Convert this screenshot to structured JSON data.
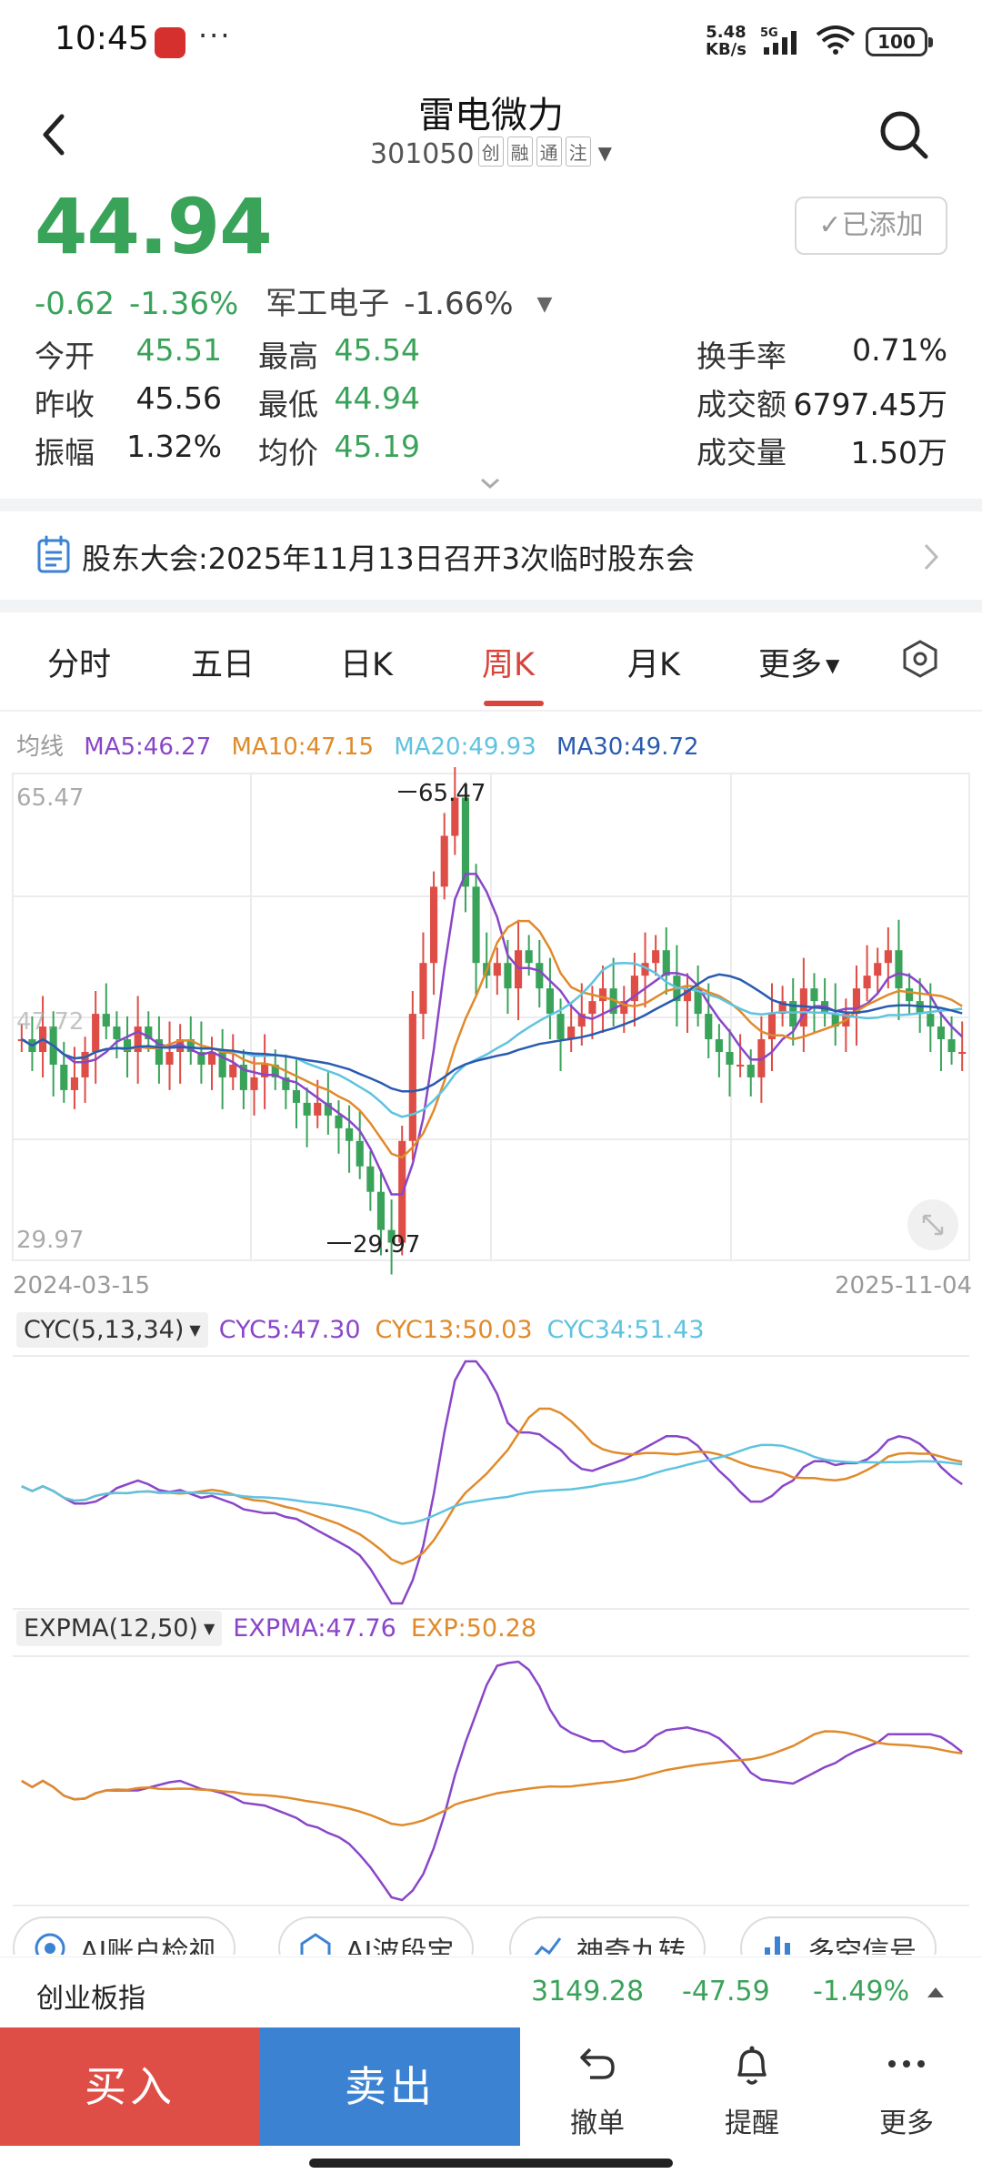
{
  "status_bar": {
    "time": "10:45",
    "more": "···",
    "speed_value": "5.48",
    "speed_unit": "KB/s",
    "network": "5G",
    "battery": "100",
    "icons": [
      "app-notification-icon",
      "signal-icon",
      "wifi-icon",
      "battery-icon"
    ]
  },
  "header": {
    "stock_name": "雷电微力",
    "stock_code": "301050",
    "tags": [
      "创",
      "融",
      "通",
      "注"
    ],
    "back_icon": "chevron-left-icon",
    "search_icon": "search-icon"
  },
  "quote": {
    "price": "44.94",
    "change": "-0.62",
    "change_pct": "-1.36%",
    "sector": "军工电子",
    "sector_pct": "-1.66%",
    "added_label": "已添加"
  },
  "stats": [
    [
      {
        "label": "今开",
        "value": "45.51",
        "color": "green"
      },
      {
        "label": "最高",
        "value": "45.54",
        "color": "green"
      },
      {
        "label": "换手率",
        "value": "0.71%",
        "color": "dark"
      }
    ],
    [
      {
        "label": "昨收",
        "value": "45.56",
        "color": "dark"
      },
      {
        "label": "最低",
        "value": "44.94",
        "color": "green"
      },
      {
        "label": "成交额",
        "value": "6797.45万",
        "color": "dark"
      }
    ],
    [
      {
        "label": "振幅",
        "value": "1.32%",
        "color": "dark"
      },
      {
        "label": "均价",
        "value": "45.19",
        "color": "green"
      },
      {
        "label": "成交量",
        "value": "1.50万",
        "color": "dark"
      }
    ]
  ],
  "notice": {
    "text": "股东大会:2025年11月13日召开3次临时股东会"
  },
  "tabs": [
    {
      "label": "分时",
      "active": false
    },
    {
      "label": "五日",
      "active": false
    },
    {
      "label": "日K",
      "active": false
    },
    {
      "label": "周K",
      "active": true
    },
    {
      "label": "月K",
      "active": false
    },
    {
      "label": "更多",
      "active": false
    }
  ],
  "ma_legend": {
    "title": "均线",
    "items": [
      {
        "label": "MA5:46.27",
        "color": "#8a46c8"
      },
      {
        "label": "MA10:47.15",
        "color": "#e08a2b"
      },
      {
        "label": "MA20:49.93",
        "color": "#5fc3df"
      },
      {
        "label": "MA30:49.72",
        "color": "#2a5bb0"
      }
    ]
  },
  "kline": {
    "high_axis": "65.47",
    "low_axis": "29.97",
    "mid_axis": "47.72",
    "max_marker": "65.47",
    "min_marker": "29.97",
    "start_date": "2024-03-15",
    "end_date": "2025-11-04",
    "up_color": "#de4d46",
    "down_color": "#3aa35a"
  },
  "cyc": {
    "name": "CYC(5,13,34)",
    "items": [
      {
        "label": "CYC5:47.30",
        "color": "#8a46c8"
      },
      {
        "label": "CYC13:50.03",
        "color": "#e08a2b"
      },
      {
        "label": "CYC34:51.43",
        "color": "#5fc3df"
      }
    ]
  },
  "expma": {
    "name": "EXPMA(12,50)",
    "items": [
      {
        "label": "EXPMA:47.76",
        "color": "#8a46c8"
      },
      {
        "label": "EXP:50.28",
        "color": "#e08a2b"
      }
    ]
  },
  "chips": [
    {
      "label": "AI账户检视",
      "icon": "ai-scan-icon"
    },
    {
      "label": "AI波段宝",
      "icon": "ai-band-icon"
    },
    {
      "label": "神奇九转",
      "icon": "trend-icon"
    },
    {
      "label": "多空信号",
      "icon": "bar-signal-icon"
    }
  ],
  "index_bar": {
    "name": "创业板指",
    "value": "3149.28",
    "change": "-47.59",
    "change_pct": "-1.49%"
  },
  "bottom_bar": {
    "buy": "买入",
    "sell": "卖出",
    "items": [
      {
        "label": "撤单",
        "icon": "undo-icon"
      },
      {
        "label": "提醒",
        "icon": "bell-icon"
      },
      {
        "label": "更多",
        "icon": "more-dots-icon"
      }
    ]
  }
}
